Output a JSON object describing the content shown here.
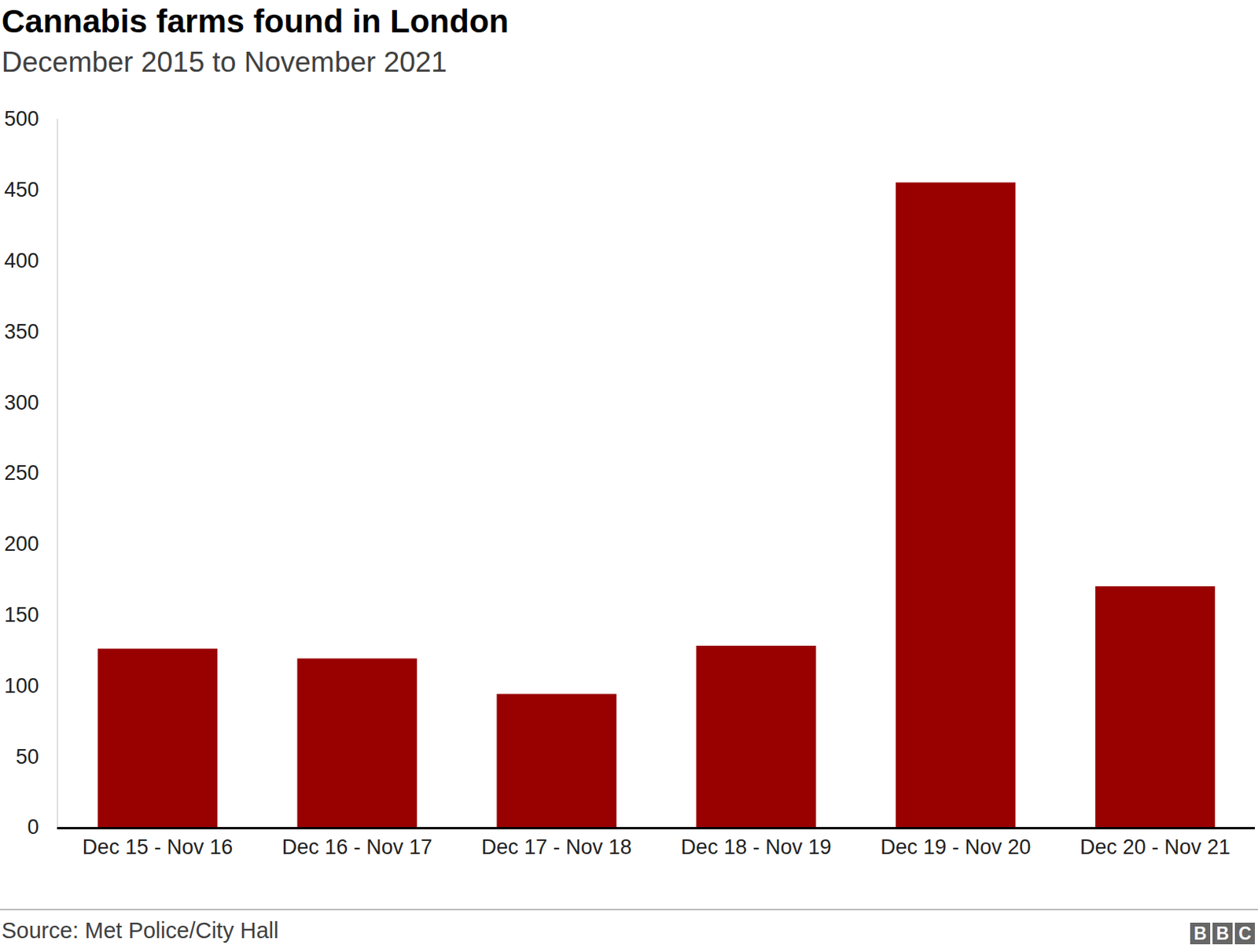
{
  "chart_data": {
    "type": "bar",
    "title": "Cannabis farms found in London",
    "subtitle": "December 2015 to November 2021",
    "source": "Source: Met Police/City Hall",
    "logo": "BBC",
    "categories": [
      "Dec 15 - Nov 16",
      "Dec 16 - Nov 17",
      "Dec 17 - Nov 18",
      "Dec 18 - Nov 19",
      "Dec 19 - Nov 20",
      "Dec 20 - Nov 21"
    ],
    "values": [
      126,
      119,
      94,
      128,
      455,
      170
    ],
    "color": "#990000",
    "ylim": [
      0,
      500
    ],
    "yticks": [
      0,
      50,
      100,
      150,
      200,
      250,
      300,
      350,
      400,
      450,
      500
    ],
    "grid": false
  }
}
